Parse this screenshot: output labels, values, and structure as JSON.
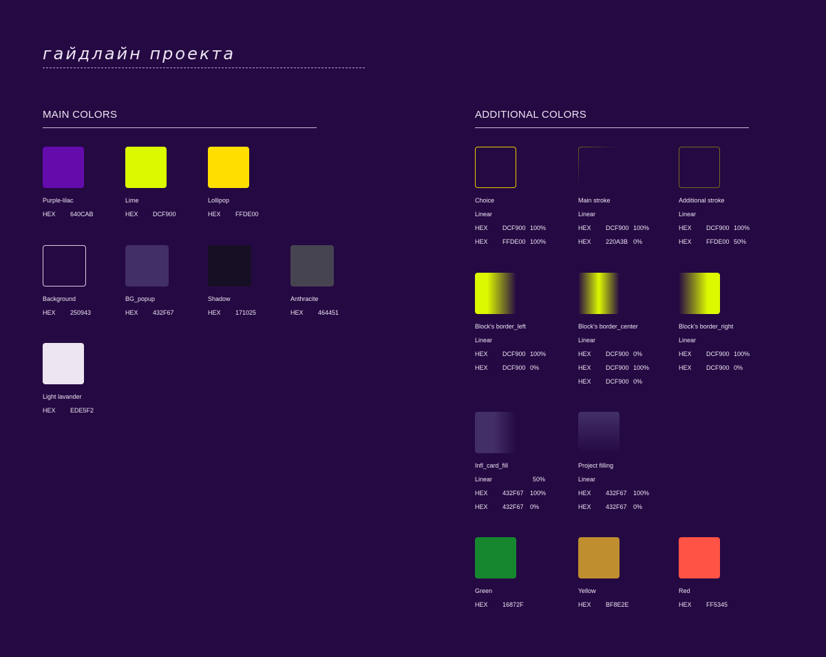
{
  "title": "гайдлайн проекта",
  "main": {
    "heading": "MAIN COLORS",
    "colors": [
      {
        "name": "Purple-lilac",
        "label": "HEX",
        "hex": "640CAB"
      },
      {
        "name": "Lime",
        "label": "HEX",
        "hex": "DCF900"
      },
      {
        "name": "Lollipop",
        "label": "HEX",
        "hex": "FFDE00"
      },
      {
        "name": "Background",
        "label": "HEX",
        "hex": "250943"
      },
      {
        "name": "BG_popup",
        "label": "HEX",
        "hex": "432F67"
      },
      {
        "name": "Shadow",
        "label": "HEX",
        "hex": "171025"
      },
      {
        "name": "Anthracite",
        "label": "HEX",
        "hex": "464451"
      },
      {
        "name": "Light lavander",
        "label": "HEX",
        "hex": "EDE5F2"
      }
    ]
  },
  "additional": {
    "heading": "ADDITIONAL COLORS",
    "items": [
      {
        "name": "Choice",
        "type": "Linear",
        "type_pct": "",
        "stops": [
          {
            "label": "HEX",
            "hex": "DCF900",
            "pct": "100%"
          },
          {
            "label": "HEX",
            "hex": "FFDE00",
            "pct": "100%"
          }
        ]
      },
      {
        "name": "Main stroke",
        "type": "Linear",
        "type_pct": "",
        "stops": [
          {
            "label": "HEX",
            "hex": "DCF900",
            "pct": "100%"
          },
          {
            "label": "HEX",
            "hex": "220A3B",
            "pct": "0%"
          }
        ]
      },
      {
        "name": "Additional stroke",
        "type": "Linear",
        "type_pct": "",
        "stops": [
          {
            "label": "HEX",
            "hex": "DCF900",
            "pct": "100%"
          },
          {
            "label": "HEX",
            "hex": "FFDE00",
            "pct": "50%"
          }
        ]
      },
      {
        "name": "Block's border_left",
        "type": "Linear",
        "type_pct": "",
        "stops": [
          {
            "label": "HEX",
            "hex": "DCF900",
            "pct": "100%"
          },
          {
            "label": "HEX",
            "hex": "DCF900",
            "pct": "0%"
          }
        ]
      },
      {
        "name": "Block's border_center",
        "type": "Linear",
        "type_pct": "",
        "stops": [
          {
            "label": "HEX",
            "hex": "DCF900",
            "pct": "0%"
          },
          {
            "label": "HEX",
            "hex": "DCF900",
            "pct": "100%"
          },
          {
            "label": "HEX",
            "hex": "DCF900",
            "pct": "0%"
          }
        ]
      },
      {
        "name": "Block's border_right",
        "type": "Linear",
        "type_pct": "",
        "stops": [
          {
            "label": "HEX",
            "hex": "DCF900",
            "pct": "100%"
          },
          {
            "label": "HEX",
            "hex": "DCF900",
            "pct": "0%"
          }
        ]
      },
      {
        "name": "Infl_card_fill",
        "type": "Linear",
        "type_pct": "50%",
        "stops": [
          {
            "label": "HEX",
            "hex": "432F67",
            "pct": "100%"
          },
          {
            "label": "HEX",
            "hex": "432F67",
            "pct": "0%"
          }
        ]
      },
      {
        "name": "Project filling",
        "type": "Linear",
        "type_pct": "",
        "stops": [
          {
            "label": "HEX",
            "hex": "432F67",
            "pct": "100%"
          },
          {
            "label": "HEX",
            "hex": "432F67",
            "pct": "0%"
          }
        ]
      },
      {
        "name": "Green",
        "label": "HEX",
        "hex": "16872F"
      },
      {
        "name": "Yellow",
        "label": "HEX",
        "hex": "BF8E2E"
      },
      {
        "name": "Red",
        "label": "HEX",
        "hex": "FF5345"
      }
    ]
  }
}
